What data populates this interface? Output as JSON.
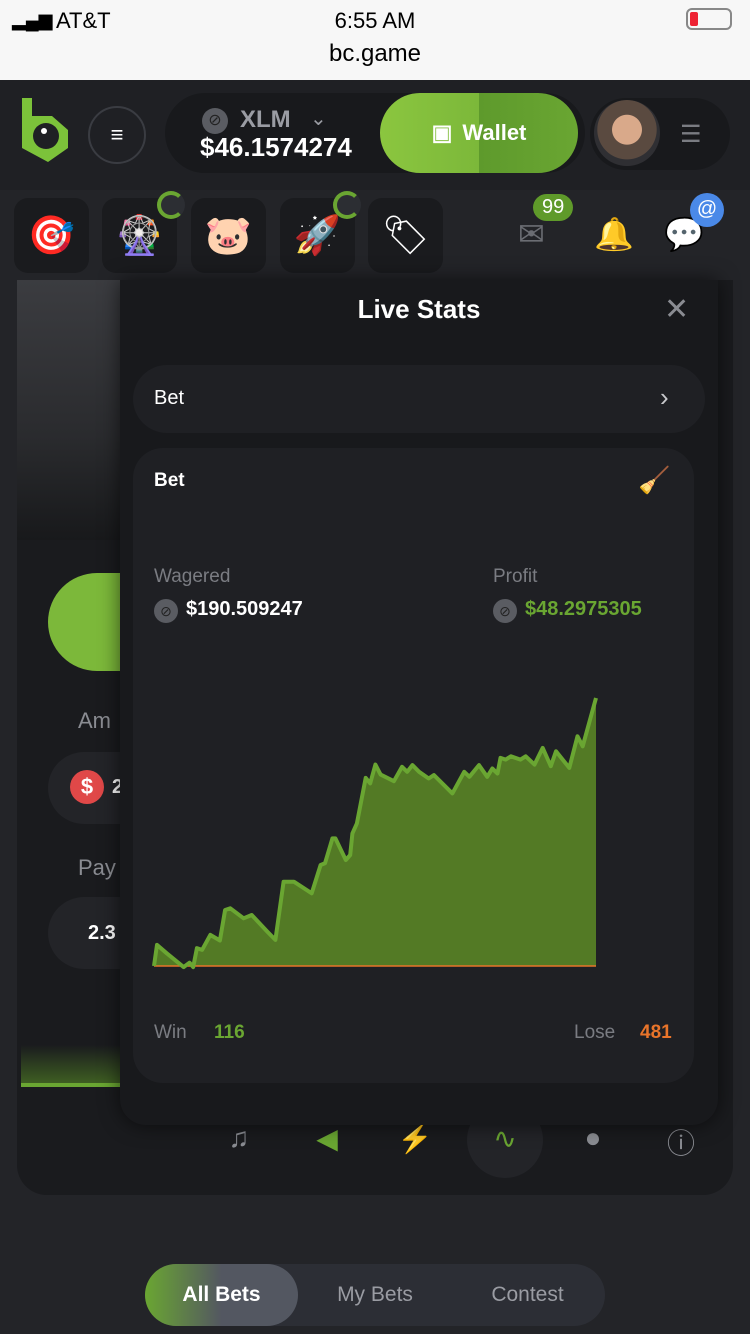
{
  "status_bar": {
    "carrier": "AT&T",
    "time": "6:55 AM",
    "url": "bc.game"
  },
  "header": {
    "currency": "XLM",
    "balance": "$46.1574274",
    "wallet_label": "Wallet",
    "icons": [
      "bc-game-logo",
      "hamburger-icon",
      "stellar-icon",
      "chevron-down-icon",
      "wallet-icon",
      "avatar",
      "user-menu-icon"
    ]
  },
  "quick_bar": {
    "items": [
      "target-icon",
      "lucky-wheel-icon",
      "piggy-bank-icon",
      "rocket-icon",
      "price-tag-icon"
    ],
    "mail_badge": "99",
    "chat_badge": "@"
  },
  "game": {
    "amount_label": "Am",
    "amount_value": "2",
    "payout_label": "Pay",
    "payout_value": "2.3"
  },
  "tools": [
    "music-off-icon",
    "sound-icon",
    "hotkeys-icon",
    "live-stats-icon",
    "fairness-icon",
    "help-icon"
  ],
  "live_stats": {
    "title": "Live Stats",
    "selector_label": "Bet",
    "card_title": "Bet",
    "wagered_label": "Wagered",
    "wagered_value": "$190.509247",
    "profit_label": "Profit",
    "profit_value": "$48.2975305",
    "win_label": "Win",
    "win_value": "116",
    "lose_label": "Lose",
    "lose_value": "481",
    "colors": {
      "profit": "#6aa632",
      "loss": "#e8742a"
    }
  },
  "chart_data": {
    "type": "area",
    "xlabel": "",
    "ylabel": "",
    "grid": false,
    "ylim": [
      0,
      48.3
    ],
    "xlim": [
      0,
      597
    ],
    "series": [
      {
        "x": [
          0,
          4,
          17,
          40,
          48,
          53,
          58,
          65,
          76,
          89,
          96,
          103,
          121,
          132,
          153,
          164,
          175,
          189,
          213,
          225,
          231,
          241,
          245,
          259,
          265,
          268,
          274,
          286,
          292,
          299,
          306,
          324,
          335,
          342,
          349,
          358,
          371,
          378,
          403,
          419,
          426,
          439,
          450,
          457,
          464,
          468,
          475,
          482,
          495,
          502,
          514,
          525,
          536,
          543,
          561,
          572,
          579,
          597
        ],
        "y": [
          0,
          3.8,
          2.3,
          -0.2,
          0.6,
          -0.2,
          3.2,
          2.9,
          5.6,
          4.6,
          10.1,
          10.4,
          8.6,
          9.2,
          6.2,
          4.7,
          15.2,
          15.2,
          13.1,
          18.2,
          18.5,
          23,
          23,
          19.1,
          20,
          23.9,
          25.7,
          33.9,
          32.9,
          36.3,
          34.5,
          33.3,
          35.9,
          35,
          36.2,
          35,
          33.8,
          34.4,
          31.1,
          35,
          34.1,
          36.2,
          34.1,
          35.6,
          34.7,
          37.5,
          37.2,
          37.8,
          37.2,
          37.8,
          36.3,
          39.3,
          36,
          38.7,
          35.7,
          41.4,
          39.6,
          48.3
        ]
      }
    ]
  },
  "bottom_tabs": [
    "All Bets",
    "My Bets",
    "Contest"
  ]
}
